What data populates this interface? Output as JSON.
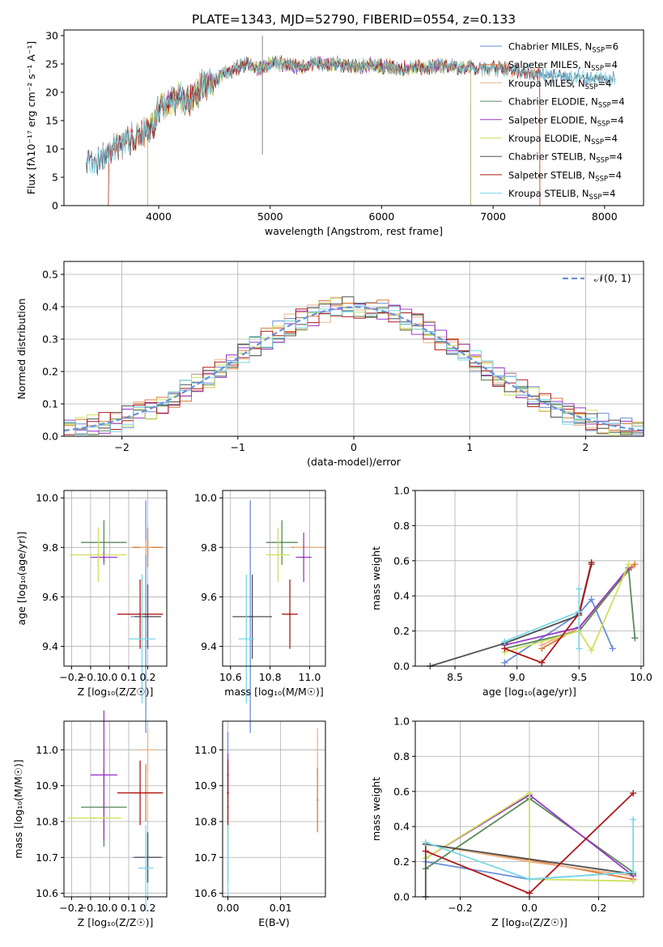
{
  "title": "PLATE=1343, MJD=52790, FIBERID=0554, z=0.133",
  "colors": {
    "cm": "#6a8fd8",
    "sm": "#e07a38",
    "km": "#e8b48a",
    "ce": "#5a8a5a",
    "se": "#9a38c8",
    "ke": "#d0e060",
    "cs": "#505050",
    "ss": "#b01818",
    "ks": "#78d8e8"
  },
  "chart_data": [
    {
      "id": "spectrum",
      "type": "line",
      "xlabel": "wavelength [Angstrom, rest frame]",
      "ylabel": "Flux [fλ10⁻¹⁷ erg cm⁻² s⁻¹ A⁻¹]",
      "xlim": [
        3150,
        8350
      ],
      "ylim": [
        0,
        31
      ],
      "xticks": [
        4000,
        5000,
        6000,
        7000,
        8000
      ],
      "yticks": [
        0,
        5,
        10,
        15,
        20,
        25,
        30
      ],
      "grid": false,
      "legend_position": "top-right",
      "legend": [
        {
          "key": "cm",
          "label": "Chabrier MILES, N",
          "sub": "SSP",
          "suffix": "=6"
        },
        {
          "key": "sm",
          "label": "Salpeter MILES, N",
          "sub": "SSP",
          "suffix": "=4"
        },
        {
          "key": "km",
          "label": "Kroupa MILES, N",
          "sub": "SSP",
          "suffix": "=4"
        },
        {
          "key": "ce",
          "label": "Chabrier ELODIE, N",
          "sub": "SSP",
          "suffix": "=4"
        },
        {
          "key": "se",
          "label": "Salpeter ELODIE, N",
          "sub": "SSP",
          "suffix": "=4"
        },
        {
          "key": "ke",
          "label": "Kroupa ELODIE, N",
          "sub": "SSP",
          "suffix": "=4"
        },
        {
          "key": "cs",
          "label": "Chabrier STELIB, N",
          "sub": "SSP",
          "suffix": "=4"
        },
        {
          "key": "ss",
          "label": "Salpeter STELIB, N",
          "sub": "SSP",
          "suffix": "=4"
        },
        {
          "key": "ks",
          "label": "Kroupa STELIB, N",
          "sub": "SSP",
          "suffix": "=4"
        }
      ],
      "envelope": [
        [
          3350,
          7.3
        ],
        [
          3500,
          8.8
        ],
        [
          3650,
          10.5
        ],
        [
          3800,
          12.5
        ],
        [
          3900,
          13.5
        ],
        [
          3950,
          14
        ],
        [
          4000,
          17
        ],
        [
          4100,
          18.5
        ],
        [
          4200,
          19
        ],
        [
          4300,
          18.5
        ],
        [
          4400,
          21.5
        ],
        [
          4500,
          22
        ],
        [
          4600,
          23.5
        ],
        [
          4700,
          24.3
        ],
        [
          4800,
          25
        ],
        [
          4900,
          24
        ],
        [
          5000,
          25
        ],
        [
          5100,
          25
        ],
        [
          5200,
          24.5
        ],
        [
          5300,
          24.5
        ],
        [
          5400,
          25
        ],
        [
          5500,
          25
        ],
        [
          5600,
          25
        ],
        [
          5700,
          24.7
        ],
        [
          5800,
          24.5
        ],
        [
          5900,
          24.8
        ],
        [
          6000,
          24.6
        ],
        [
          6100,
          24.3
        ],
        [
          6200,
          24.3
        ],
        [
          6300,
          24.3
        ],
        [
          6400,
          24.2
        ],
        [
          6500,
          24.6
        ],
        [
          6600,
          24.7
        ],
        [
          6700,
          24.3
        ],
        [
          6800,
          24.4
        ],
        [
          6900,
          24.2
        ],
        [
          7000,
          24.2
        ],
        [
          7100,
          24.1
        ],
        [
          7200,
          23.8
        ],
        [
          7300,
          23.5
        ],
        [
          7400,
          23.3
        ],
        [
          7500,
          23
        ],
        [
          7600,
          22.8
        ],
        [
          7700,
          22.6
        ],
        [
          7800,
          22.6
        ],
        [
          7900,
          22.4
        ],
        [
          8000,
          22.3
        ],
        [
          8100,
          22.4
        ]
      ],
      "model_ranges": {
        "cm": [
          3350,
          8100
        ],
        "sm": [
          3500,
          7420
        ],
        "km": [
          3500,
          7420
        ],
        "ce": [
          3900,
          6800
        ],
        "se": [
          3900,
          6800
        ],
        "ke": [
          3900,
          6800
        ],
        "cs": [
          3350,
          8100
        ],
        "ss": [
          3500,
          7420
        ],
        "ks": [
          3350,
          8100
        ]
      }
    },
    {
      "id": "residual-histogram",
      "type": "line",
      "xlabel": "(data-model)/error",
      "ylabel": "Normed distribution",
      "xlim": [
        -2.5,
        2.5
      ],
      "ylim": [
        0,
        0.54
      ],
      "xticks": [
        -2,
        -1,
        0,
        1,
        2
      ],
      "yticks": [
        0.0,
        0.1,
        0.2,
        0.3,
        0.4,
        0.5
      ],
      "grid": true,
      "legend_position": "top-right",
      "reference_label": "𝒩(0, 1)",
      "bin_width": 0.1
    },
    {
      "id": "age-vs-Z",
      "type": "scatter",
      "xlabel": "Z [log₁₀(Z/Z☉)]",
      "ylabel": "age  [log₁₀(age/yr)]",
      "xlim": [
        -0.24,
        0.3
      ],
      "ylim": [
        9.32,
        10.03
      ],
      "xticks": [
        -0.2,
        -0.1,
        0.0,
        0.1,
        0.2
      ],
      "yticks": [
        9.4,
        9.6,
        9.8,
        10.0
      ],
      "grid": true,
      "points": [
        {
          "key": "cm",
          "x": 0.19,
          "y": 9.52,
          "xerr": 0.08,
          "yerr": 0.47
        },
        {
          "key": "sm",
          "x": 0.2,
          "y": 9.8,
          "xerr": 0.08,
          "yerr": 0.08
        },
        {
          "key": "km",
          "x": 0.19,
          "y": 9.8,
          "xerr": 0.03,
          "yerr": 0.03
        },
        {
          "key": "ce",
          "x": -0.03,
          "y": 9.82,
          "xerr": 0.12,
          "yerr": 0.09
        },
        {
          "key": "se",
          "x": -0.03,
          "y": 9.76,
          "xerr": 0.07,
          "yerr": 0.02
        },
        {
          "key": "ke",
          "x": -0.06,
          "y": 9.77,
          "xerr": 0.15,
          "yerr": 0.11
        },
        {
          "key": "cs",
          "x": 0.2,
          "y": 9.52,
          "xerr": 0.07,
          "yerr": 0.13
        },
        {
          "key": "ss",
          "x": 0.16,
          "y": 9.53,
          "xerr": 0.12,
          "yerr": 0.14
        },
        {
          "key": "ks",
          "x": 0.17,
          "y": 9.43,
          "xerr": 0.07,
          "yerr": 0.26
        }
      ]
    },
    {
      "id": "age-vs-mass",
      "type": "scatter",
      "xlabel": "mass [log₁₀(M/M☉)]",
      "xlim": [
        10.56,
        11.08
      ],
      "ylim": [
        9.32,
        10.03
      ],
      "xticks": [
        10.6,
        10.8,
        11.0
      ],
      "yticks": [
        9.4,
        9.6,
        9.8,
        10.0
      ],
      "grid": true,
      "points": [
        {
          "key": "cm",
          "x": 10.7,
          "y": 9.52,
          "xerr": 0.0,
          "yerr": 0.47
        },
        {
          "key": "sm",
          "x": 10.97,
          "y": 9.8,
          "xerr": 0.06,
          "yerr": 0.0
        },
        {
          "key": "km",
          "x": 11.0,
          "y": 9.8,
          "xerr": 0.08,
          "yerr": 0.0
        },
        {
          "key": "ce",
          "x": 10.86,
          "y": 9.82,
          "xerr": 0.08,
          "yerr": 0.09
        },
        {
          "key": "se",
          "x": 10.97,
          "y": 9.76,
          "xerr": 0.04,
          "yerr": 0.1
        },
        {
          "key": "ke",
          "x": 10.84,
          "y": 9.77,
          "xerr": 0.06,
          "yerr": 0.11
        },
        {
          "key": "cs",
          "x": 10.71,
          "y": 9.52,
          "xerr": 0.1,
          "yerr": 0.17
        },
        {
          "key": "ss",
          "x": 10.9,
          "y": 9.53,
          "xerr": 0.04,
          "yerr": 0.14
        },
        {
          "key": "ks",
          "x": 10.68,
          "y": 9.43,
          "xerr": 0.04,
          "yerr": 0.26
        }
      ]
    },
    {
      "id": "mass-weight-vs-age",
      "type": "line",
      "xlabel": "age  [log₁₀(age/yr)]",
      "ylabel": "mass weight",
      "xlim": [
        8.18,
        10.02
      ],
      "ylim": [
        0,
        1
      ],
      "xticks": [
        8.5,
        9.0,
        9.5,
        10.0
      ],
      "yticks": [
        0.0,
        0.2,
        0.4,
        0.6,
        0.8,
        1.0
      ],
      "grid": true,
      "series": [
        {
          "key": "cm",
          "points": [
            [
              8.9,
              0.02
            ],
            [
              9.5,
              0.3
            ],
            [
              9.6,
              0.38
            ],
            [
              9.77,
              0.1
            ]
          ]
        },
        {
          "key": "sm",
          "points": [
            [
              9.2,
              0.1
            ],
            [
              9.5,
              0.22
            ],
            [
              9.92,
              0.56
            ],
            [
              9.95,
              0.58
            ]
          ]
        },
        {
          "key": "km",
          "points": [
            [
              9.2,
              0.12
            ],
            [
              9.5,
              0.22
            ],
            [
              9.9,
              0.56
            ]
          ]
        },
        {
          "key": "ce",
          "points": [
            [
              8.9,
              0.1
            ],
            [
              9.5,
              0.2
            ],
            [
              9.9,
              0.55
            ],
            [
              9.95,
              0.16
            ]
          ]
        },
        {
          "key": "se",
          "points": [
            [
              8.9,
              0.12
            ],
            [
              9.5,
              0.22
            ],
            [
              9.9,
              0.56
            ]
          ]
        },
        {
          "key": "ke",
          "points": [
            [
              8.9,
              0.08
            ],
            [
              9.5,
              0.2
            ],
            [
              9.6,
              0.09
            ],
            [
              9.9,
              0.58
            ]
          ]
        },
        {
          "key": "cs",
          "points": [
            [
              8.3,
              0.0
            ],
            [
              8.9,
              0.13
            ],
            [
              9.5,
              0.29
            ],
            [
              9.6,
              0.58
            ]
          ]
        },
        {
          "key": "ss",
          "points": [
            [
              8.9,
              0.1
            ],
            [
              9.2,
              0.02
            ],
            [
              9.5,
              0.3
            ],
            [
              9.6,
              0.59
            ]
          ]
        },
        {
          "key": "ks",
          "points": [
            [
              8.9,
              0.14
            ],
            [
              9.5,
              0.31
            ],
            [
              9.5,
              0.44
            ],
            [
              9.5,
              0.1
            ]
          ]
        }
      ]
    },
    {
      "id": "mass-vs-Z",
      "type": "scatter",
      "xlabel": "Z [log₁₀(Z/Z☉)]",
      "ylabel": "mass [log₁₀(M/M☉)]",
      "xlim": [
        -0.24,
        0.3
      ],
      "ylim": [
        10.59,
        11.08
      ],
      "xticks": [
        -0.2,
        -0.1,
        0.0,
        0.1,
        0.2
      ],
      "yticks": [
        10.6,
        10.7,
        10.8,
        10.9,
        11.0
      ],
      "grid": true,
      "points": [
        {
          "key": "cm",
          "x": 0.2,
          "y": 10.7,
          "xerr": 0.08,
          "yerr": 0.07
        },
        {
          "key": "sm",
          "x": 0.19,
          "y": 10.88,
          "xerr": 0.08,
          "yerr": 0.08
        },
        {
          "key": "km",
          "x": 0.2,
          "y": 11.0,
          "xerr": 0.04,
          "yerr": 0.06
        },
        {
          "key": "ce",
          "x": -0.03,
          "y": 10.84,
          "xerr": 0.12,
          "yerr": 0.11
        },
        {
          "key": "se",
          "x": -0.03,
          "y": 10.93,
          "xerr": 0.07,
          "yerr": 0.18
        },
        {
          "key": "ke",
          "x": -0.08,
          "y": 10.81,
          "xerr": 0.14,
          "yerr": 0.0
        },
        {
          "key": "cs",
          "x": 0.2,
          "y": 10.7,
          "xerr": 0.07,
          "yerr": 0.07
        },
        {
          "key": "ss",
          "x": 0.16,
          "y": 10.88,
          "xerr": 0.12,
          "yerr": 0.09
        },
        {
          "key": "ks",
          "x": 0.19,
          "y": 10.67,
          "xerr": 0.04,
          "yerr": 0.12
        }
      ]
    },
    {
      "id": "mass-vs-EBV",
      "type": "scatter",
      "xlabel": "E(B-V)",
      "xlim": [
        -0.001,
        0.0185
      ],
      "ylim": [
        10.59,
        11.08
      ],
      "xticks": [
        0.0,
        0.01
      ],
      "yticks": [
        10.6,
        10.7,
        10.8,
        10.9,
        11.0
      ],
      "grid": true,
      "points": [
        {
          "key": "cm",
          "x": 0.0,
          "y": 10.84,
          "yerr": 0.21
        },
        {
          "key": "ke",
          "x": 0.0,
          "y": 10.81,
          "yerr": 0.06
        },
        {
          "key": "ks",
          "x": 0.0,
          "y": 10.7,
          "yerr": 0.12
        },
        {
          "key": "se",
          "x": 0.0,
          "y": 10.93,
          "yerr": 0.06
        },
        {
          "key": "ss",
          "x": 0.0,
          "y": 10.88,
          "yerr": 0.09
        },
        {
          "key": "km",
          "x": 0.017,
          "y": 11.0,
          "yerr": 0.06
        },
        {
          "key": "sm",
          "x": 0.017,
          "y": 10.86,
          "yerr": 0.09
        }
      ]
    },
    {
      "id": "mass-weight-vs-Z",
      "type": "line",
      "xlabel": "Z [log₁₀(Z/Z☉)]",
      "ylabel": "mass weight",
      "xlim": [
        -0.33,
        0.33
      ],
      "ylim": [
        0,
        1
      ],
      "xticks": [
        -0.2,
        0.0,
        0.2
      ],
      "yticks": [
        0.0,
        0.2,
        0.4,
        0.6,
        0.8,
        1.0
      ],
      "grid": true,
      "series": [
        {
          "key": "cm",
          "points": [
            [
              -0.3,
              0.2
            ],
            [
              0.0,
              0.1
            ],
            [
              0.3,
              0.14
            ]
          ]
        },
        {
          "key": "sm",
          "points": [
            [
              -0.3,
              0.3
            ],
            [
              0.0,
              0.21
            ],
            [
              0.3,
              0.1
            ]
          ]
        },
        {
          "key": "km",
          "points": [
            [
              -0.3,
              0.3
            ],
            [
              0.0,
              0.2
            ],
            [
              0.3,
              0.12
            ]
          ]
        },
        {
          "key": "ce",
          "points": [
            [
              -0.3,
              0.16
            ],
            [
              0.0,
              0.56
            ],
            [
              0.3,
              0.14
            ]
          ]
        },
        {
          "key": "se",
          "points": [
            [
              -0.3,
              0.22
            ],
            [
              0.0,
              0.58
            ],
            [
              0.3,
              0.12
            ]
          ]
        },
        {
          "key": "ke",
          "points": [
            [
              -0.3,
              0.22
            ],
            [
              0.0,
              0.59
            ],
            [
              0.0,
              0.1
            ],
            [
              0.3,
              0.09
            ]
          ]
        },
        {
          "key": "cs",
          "points": [
            [
              -0.3,
              0.0
            ],
            [
              -0.3,
              0.3
            ],
            [
              0.3,
              0.13
            ]
          ]
        },
        {
          "key": "ss",
          "points": [
            [
              -0.3,
              0.26
            ],
            [
              0.0,
              0.02
            ],
            [
              0.3,
              0.59
            ]
          ]
        },
        {
          "key": "ks",
          "points": [
            [
              -0.3,
              0.31
            ],
            [
              0.0,
              0.1
            ],
            [
              0.3,
              0.14
            ],
            [
              0.3,
              0.44
            ]
          ]
        }
      ]
    }
  ]
}
